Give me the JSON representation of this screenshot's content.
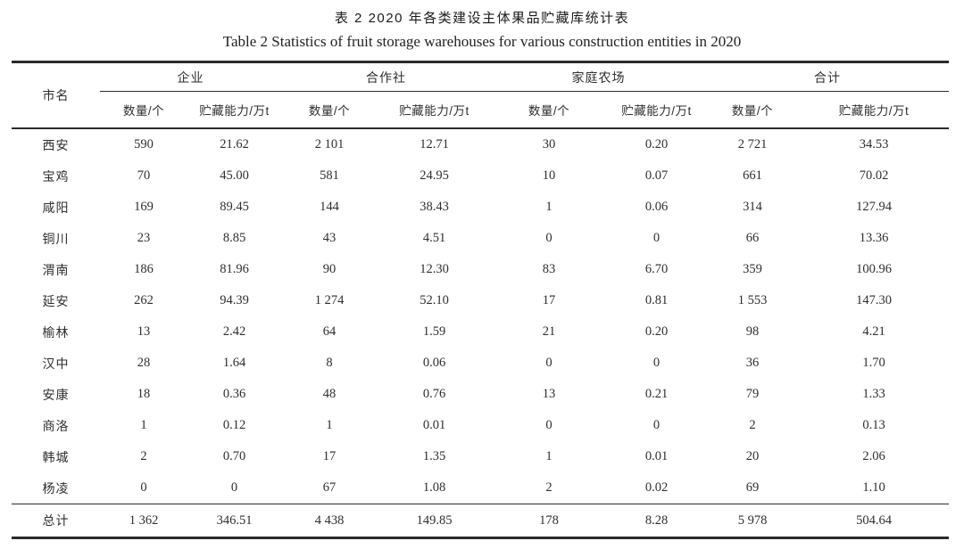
{
  "page": {
    "title_zh": "表 2 2020 年各类建设主体果品贮藏库统计表",
    "title_en": "Table 2 Statistics of fruit storage warehouses for various construction entities in 2020"
  },
  "table": {
    "corner_header": "市名",
    "groups": [
      {
        "label": "企业"
      },
      {
        "label": "合作社"
      },
      {
        "label": "家庭农场"
      },
      {
        "label": "合计"
      }
    ],
    "subheaders": {
      "quantity": "数量/个",
      "capacity": "贮藏能力/万t"
    },
    "rows": [
      {
        "city": "西安",
        "values": [
          "590",
          "21.62",
          "2 101",
          "12.71",
          "30",
          "0.20",
          "2 721",
          "34.53"
        ]
      },
      {
        "city": "宝鸡",
        "values": [
          "70",
          "45.00",
          "581",
          "24.95",
          "10",
          "0.07",
          "661",
          "70.02"
        ]
      },
      {
        "city": "咸阳",
        "values": [
          "169",
          "89.45",
          "144",
          "38.43",
          "1",
          "0.06",
          "314",
          "127.94"
        ]
      },
      {
        "city": "铜川",
        "values": [
          "23",
          "8.85",
          "43",
          "4.51",
          "0",
          "0",
          "66",
          "13.36"
        ]
      },
      {
        "city": "渭南",
        "values": [
          "186",
          "81.96",
          "90",
          "12.30",
          "83",
          "6.70",
          "359",
          "100.96"
        ]
      },
      {
        "city": "延安",
        "values": [
          "262",
          "94.39",
          "1 274",
          "52.10",
          "17",
          "0.81",
          "1 553",
          "147.30"
        ]
      },
      {
        "city": "榆林",
        "values": [
          "13",
          "2.42",
          "64",
          "1.59",
          "21",
          "0.20",
          "98",
          "4.21"
        ]
      },
      {
        "city": "汉中",
        "values": [
          "28",
          "1.64",
          "8",
          "0.06",
          "0",
          "0",
          "36",
          "1.70"
        ]
      },
      {
        "city": "安康",
        "values": [
          "18",
          "0.36",
          "48",
          "0.76",
          "13",
          "0.21",
          "79",
          "1.33"
        ]
      },
      {
        "city": "商洛",
        "values": [
          "1",
          "0.12",
          "1",
          "0.01",
          "0",
          "0",
          "2",
          "0.13"
        ]
      },
      {
        "city": "韩城",
        "values": [
          "2",
          "0.70",
          "17",
          "1.35",
          "1",
          "0.01",
          "20",
          "2.06"
        ]
      },
      {
        "city": "杨凌",
        "values": [
          "0",
          "0",
          "67",
          "1.08",
          "2",
          "0.02",
          "69",
          "1.10"
        ]
      }
    ],
    "total_row": {
      "city": "总计",
      "values": [
        "1 362",
        "346.51",
        "4 438",
        "149.85",
        "178",
        "8.28",
        "5 978",
        "504.64"
      ]
    }
  },
  "colors": {
    "text": "#262626",
    "rule": "#2b2b2b",
    "background": "#ffffff"
  }
}
